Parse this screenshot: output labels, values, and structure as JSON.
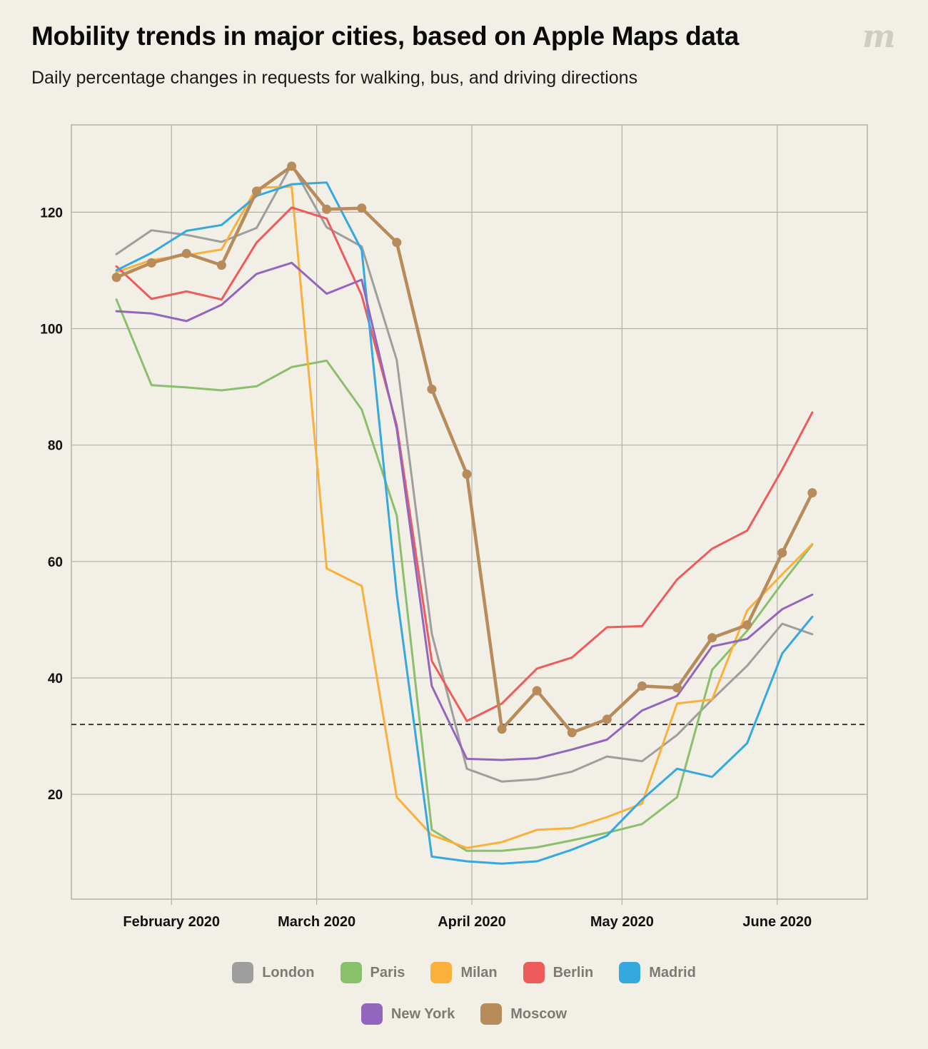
{
  "title": "Mobility trends in major cities, based on Apple Maps data",
  "subtitle": "Daily percentage changes in requests for walking, bus, and driving directions",
  "chart_data": {
    "type": "line",
    "x": [
      "2020-01-21",
      "2020-01-28",
      "2020-02-04",
      "2020-02-11",
      "2020-02-18",
      "2020-02-25",
      "2020-03-03",
      "2020-03-10",
      "2020-03-17",
      "2020-03-24",
      "2020-03-31",
      "2020-04-07",
      "2020-04-14",
      "2020-04-21",
      "2020-04-28",
      "2020-05-05",
      "2020-05-12",
      "2020-05-19",
      "2020-05-26",
      "2020-06-02",
      "2020-06-08"
    ],
    "xticks": [
      {
        "date": "2020-02-01",
        "label": "February 2020"
      },
      {
        "date": "2020-03-01",
        "label": "March 2020"
      },
      {
        "date": "2020-04-01",
        "label": "April 2020"
      },
      {
        "date": "2020-05-01",
        "label": "May 2020"
      },
      {
        "date": "2020-06-01",
        "label": "June 2020"
      }
    ],
    "yticks": [
      20,
      40,
      60,
      80,
      100,
      120
    ],
    "ylim": [
      2,
      135
    ],
    "xlim": [
      "2020-01-12",
      "2020-06-19"
    ],
    "reference_line": 32,
    "grid": true,
    "legend_position": "bottom",
    "series": [
      {
        "name": "London",
        "color": "#9e9e9e",
        "markers": false,
        "values": [
          112.8,
          116.9,
          116.1,
          114.9,
          117.3,
          128.2,
          117.4,
          114.1,
          94.6,
          47.6,
          24.4,
          22.2,
          22.6,
          23.9,
          26.5,
          25.7,
          30.2,
          36.3,
          42.1,
          49.3,
          47.5
        ]
      },
      {
        "name": "Paris",
        "color": "#8abf6c",
        "markers": false,
        "values": [
          105.0,
          90.3,
          89.9,
          89.4,
          90.1,
          93.4,
          94.5,
          86.1,
          67.9,
          13.9,
          10.3,
          10.3,
          10.9,
          12.1,
          13.4,
          14.9,
          19.5,
          41.4,
          48.1,
          56.3,
          62.9
        ]
      },
      {
        "name": "Milan",
        "color": "#fbb03b",
        "markers": false,
        "values": [
          109.7,
          111.8,
          112.6,
          113.6,
          124.2,
          124.4,
          58.8,
          55.8,
          19.5,
          13.0,
          10.8,
          11.8,
          13.9,
          14.2,
          16.1,
          18.4,
          35.6,
          36.3,
          51.6,
          57.8,
          63.0
        ]
      },
      {
        "name": "Berlin",
        "color": "#ef5b5b",
        "markers": false,
        "values": [
          110.7,
          105.1,
          106.4,
          105.0,
          114.8,
          120.8,
          118.9,
          105.7,
          83.4,
          42.9,
          32.6,
          35.6,
          41.6,
          43.5,
          48.7,
          48.9,
          56.9,
          62.2,
          65.3,
          75.8,
          85.6
        ]
      },
      {
        "name": "Madrid",
        "color": "#35a8e0",
        "markers": false,
        "values": [
          110.0,
          113.0,
          116.8,
          117.8,
          122.8,
          124.8,
          125.1,
          113.5,
          54.4,
          9.3,
          8.5,
          8.1,
          8.5,
          10.5,
          12.9,
          19.1,
          24.4,
          23.0,
          28.8,
          44.2,
          50.5
        ]
      },
      {
        "name": "New York",
        "color": "#9366bd",
        "markers": false,
        "values": [
          103.0,
          102.6,
          101.3,
          104.1,
          109.4,
          111.3,
          106.0,
          108.4,
          82.8,
          38.6,
          26.1,
          25.9,
          26.2,
          27.7,
          29.4,
          34.4,
          36.9,
          45.4,
          46.7,
          51.8,
          54.3
        ]
      },
      {
        "name": "Moscow",
        "color": "#b78b5a",
        "markers": true,
        "values": [
          108.8,
          111.3,
          112.9,
          110.9,
          123.6,
          127.9,
          120.5,
          120.7,
          114.8,
          89.6,
          75.0,
          31.2,
          37.8,
          30.6,
          32.9,
          38.6,
          38.3,
          46.9,
          49.1,
          61.5,
          71.8
        ]
      }
    ]
  }
}
